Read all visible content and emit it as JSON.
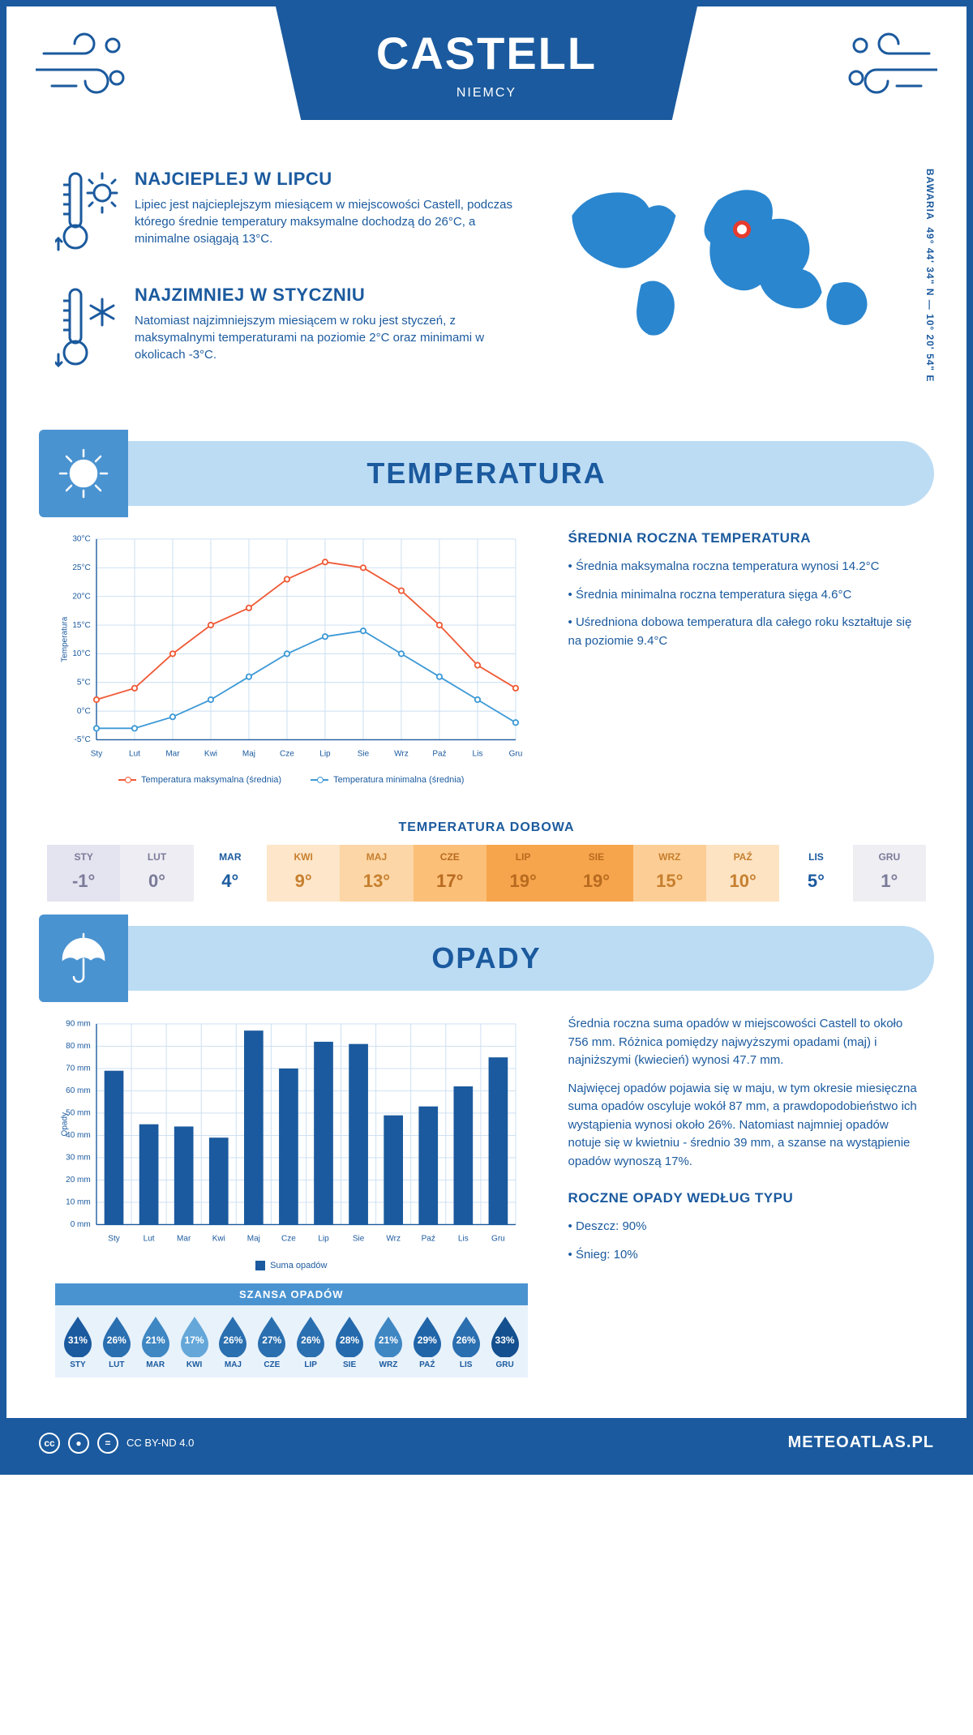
{
  "header": {
    "title": "CASTELL",
    "subtitle": "NIEMCY"
  },
  "coords": "49° 44' 34\" N — 10° 20' 54\" E",
  "region": "BAWARIA",
  "intro": {
    "hot": {
      "title": "NAJCIEPLEJ W LIPCU",
      "text": "Lipiec jest najcieplejszym miesiącem w miejscowości Castell, podczas którego średnie temperatury maksymalne dochodzą do 26°C, a minimalne osiągają 13°C."
    },
    "cold": {
      "title": "NAJZIMNIEJ W STYCZNIU",
      "text": "Natomiast najzimniejszym miesiącem w roku jest styczeń, z maksymalnymi temperaturami na poziomie 2°C oraz minimami w okolicach -3°C."
    }
  },
  "temp_section": {
    "title": "TEMPERATURA"
  },
  "months": [
    "Sty",
    "Lut",
    "Mar",
    "Kwi",
    "Maj",
    "Cze",
    "Lip",
    "Sie",
    "Wrz",
    "Paź",
    "Lis",
    "Gru"
  ],
  "months_uc": [
    "STY",
    "LUT",
    "MAR",
    "KWI",
    "MAJ",
    "CZE",
    "LIP",
    "SIE",
    "WRZ",
    "PAŹ",
    "LIS",
    "GRU"
  ],
  "temp_chart": {
    "y_axis_label": "Temperatura",
    "y_min": -5,
    "y_max": 30,
    "y_step": 5,
    "y_ticks": [
      "-5°C",
      "0°C",
      "5°C",
      "10°C",
      "15°C",
      "20°C",
      "25°C",
      "30°C"
    ],
    "series_max": {
      "label": "Temperatura maksymalna (średnia)",
      "color": "#ef5a36",
      "values": [
        2,
        4,
        10,
        15,
        18,
        23,
        26,
        25,
        21,
        15,
        8,
        4
      ]
    },
    "series_min": {
      "label": "Temperatura minimalna (średnia)",
      "color": "#3d99d6",
      "values": [
        -3,
        -3,
        -1,
        2,
        6,
        10,
        13,
        14,
        10,
        6,
        2,
        -2
      ]
    },
    "grid_color": "#c9def0",
    "bg": "#ffffff"
  },
  "temp_stats": {
    "title": "ŚREDNIA ROCZNA TEMPERATURA",
    "items": [
      "Średnia maksymalna roczna temperatura wynosi 14.2°C",
      "Średnia minimalna roczna temperatura sięga 4.6°C",
      "Uśredniona dobowa temperatura dla całego roku kształtuje się na poziomie 9.4°C"
    ]
  },
  "daily_temp": {
    "title": "TEMPERATURA DOBOWA",
    "values": [
      "-1°",
      "0°",
      "4°",
      "9°",
      "13°",
      "17°",
      "19°",
      "19°",
      "15°",
      "10°",
      "5°",
      "1°"
    ],
    "colors": [
      "#e4e4f0",
      "#ededf3",
      "#ffffff",
      "#fde6c9",
      "#fcd6a6",
      "#fbbf78",
      "#f7a54c",
      "#f7a54c",
      "#fcce95",
      "#fde3c2",
      "#ffffff",
      "#eeeef3"
    ],
    "text_colors": [
      "#7a7a99",
      "#7a7a99",
      "#1b5a9e",
      "#c77f2e",
      "#c77f2e",
      "#b86b1f",
      "#b86b1f",
      "#b86b1f",
      "#c77f2e",
      "#c77f2e",
      "#1b5a9e",
      "#7a7a99"
    ]
  },
  "precip_section": {
    "title": "OPADY"
  },
  "precip_chart": {
    "y_axis_label": "Opady",
    "y_min": 0,
    "y_max": 90,
    "y_step": 10,
    "y_ticks": [
      "0 mm",
      "10 mm",
      "20 mm",
      "30 mm",
      "40 mm",
      "50 mm",
      "60 mm",
      "70 mm",
      "80 mm",
      "90 mm"
    ],
    "values": [
      69,
      45,
      44,
      39,
      87,
      70,
      82,
      81,
      49,
      53,
      62,
      75
    ],
    "bar_color": "#1b5a9e",
    "grid_color": "#c9def0",
    "legend": "Suma opadów"
  },
  "precip_text": {
    "p1": "Średnia roczna suma opadów w miejscowości Castell to około 756 mm. Różnica pomiędzy najwyższymi opadami (maj) i najniższymi (kwiecień) wynosi 47.7 mm.",
    "p2": "Najwięcej opadów pojawia się w maju, w tym okresie miesięczna suma opadów oscyluje wokół 87 mm, a prawdopodobieństwo ich wystąpienia wynosi około 26%. Natomiast najmniej opadów notuje się w kwietniu - średnio 39 mm, a szanse na wystąpienie opadów wynoszą 17%."
  },
  "precip_chance": {
    "title": "SZANSA OPADÓW",
    "values": [
      "31%",
      "26%",
      "21%",
      "17%",
      "26%",
      "27%",
      "26%",
      "28%",
      "21%",
      "29%",
      "26%",
      "33%"
    ],
    "colors": [
      "#1b5a9e",
      "#2a6fb0",
      "#3f87c3",
      "#64a7d8",
      "#2a6fb0",
      "#2a6fb0",
      "#2a6fb0",
      "#256aac",
      "#3f87c3",
      "#2065a8",
      "#2a6fb0",
      "#14508f"
    ]
  },
  "precip_type": {
    "title": "ROCZNE OPADY WEDŁUG TYPU",
    "items": [
      "Deszcz: 90%",
      "Śnieg: 10%"
    ]
  },
  "footer": {
    "license": "CC BY-ND 4.0",
    "brand": "METEOATLAS.PL"
  }
}
